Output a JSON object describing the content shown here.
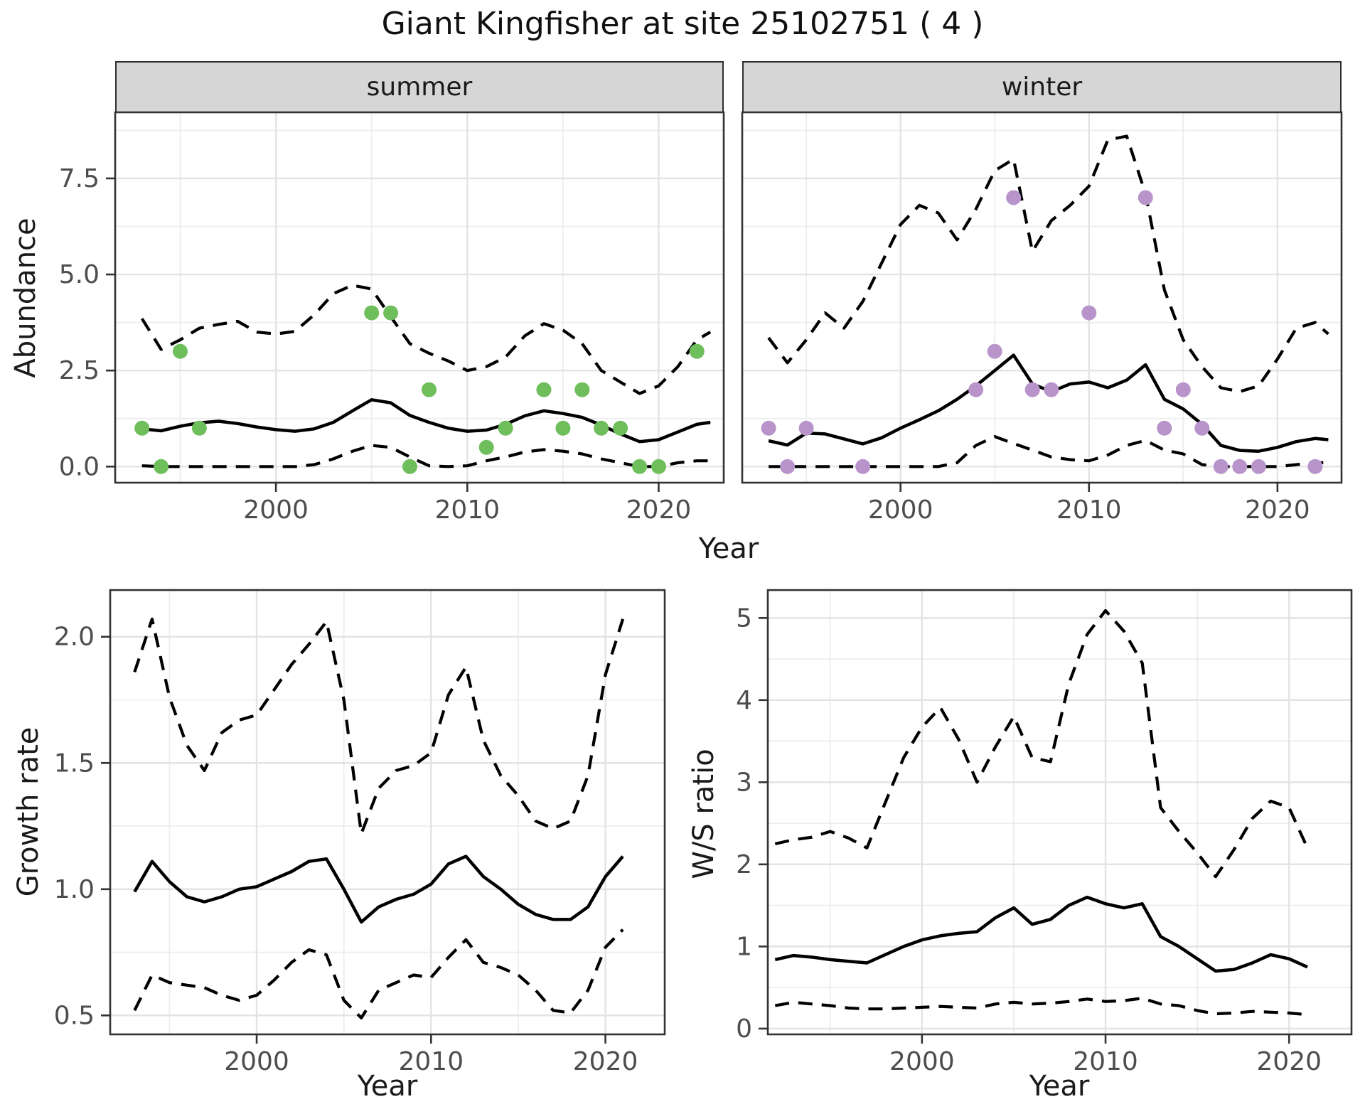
{
  "title": "Giant Kingfisher at site 25102751 ( 4 )",
  "colors": {
    "summer_points": "#6FBE5C",
    "winter_points": "#B894CB",
    "line": "#000000",
    "grid_major": "#e3e3e3",
    "grid_minor": "#ededed",
    "strip_fill": "#d6d6d6",
    "panel_border": "#333333",
    "tick_label": "#4d4d4d"
  },
  "chart_data": [
    {
      "id": "summer",
      "type": "line",
      "facet_label": "summer",
      "ylabel": "Abundance",
      "xlabel": "Year",
      "xlim": [
        1991.6,
        2023.4
      ],
      "ylim": [
        -0.42,
        9.22
      ],
      "xticks": [
        2000,
        2010,
        2020
      ],
      "xtick_labels": [
        "2000",
        "2010",
        "2020"
      ],
      "minor_x": [
        1995,
        2005,
        2015
      ],
      "yticks": [
        0,
        2.5,
        5,
        7.5
      ],
      "ytick_labels": [
        "0.0",
        "2.5",
        "5.0",
        "7.5"
      ],
      "minor_y": [
        1.25,
        3.75,
        6.25,
        8.75
      ],
      "series": [
        {
          "name": "fit",
          "style": "solid",
          "x": [
            1993,
            1994,
            1995,
            1996,
            1997,
            1998,
            1999,
            2000,
            2001,
            2002,
            2003,
            2004,
            2005,
            2006,
            2007,
            2008,
            2009,
            2010,
            2011,
            2012,
            2013,
            2014,
            2015,
            2016,
            2017,
            2018,
            2019,
            2020,
            2021,
            2022,
            2022.7
          ],
          "y": [
            0.98,
            0.93,
            1.05,
            1.14,
            1.18,
            1.12,
            1.03,
            0.96,
            0.92,
            0.98,
            1.15,
            1.45,
            1.74,
            1.66,
            1.33,
            1.15,
            1.0,
            0.92,
            0.95,
            1.1,
            1.32,
            1.45,
            1.38,
            1.28,
            1.08,
            0.85,
            0.65,
            0.7,
            0.9,
            1.1,
            1.15
          ]
        },
        {
          "name": "upper CI",
          "style": "dashed",
          "x": [
            1993,
            1994,
            1995,
            1996,
            1997,
            1998,
            1999,
            2000,
            2001,
            2002,
            2003,
            2004,
            2005,
            2006,
            2007,
            2008,
            2009,
            2010,
            2011,
            2012,
            2013,
            2014,
            2015,
            2016,
            2017,
            2018,
            2019,
            2020,
            2021,
            2022,
            2022.7
          ],
          "y": [
            3.85,
            3.05,
            3.3,
            3.6,
            3.7,
            3.78,
            3.5,
            3.45,
            3.52,
            3.95,
            4.5,
            4.72,
            4.62,
            3.9,
            3.2,
            2.95,
            2.75,
            2.5,
            2.6,
            2.85,
            3.4,
            3.72,
            3.55,
            3.2,
            2.5,
            2.2,
            1.9,
            2.1,
            2.6,
            3.3,
            3.5
          ]
        },
        {
          "name": "lower CI",
          "style": "dashed",
          "x": [
            1993,
            1994,
            1995,
            1996,
            1997,
            1998,
            1999,
            2000,
            2001,
            2002,
            2003,
            2004,
            2005,
            2006,
            2007,
            2008,
            2009,
            2010,
            2011,
            2012,
            2013,
            2014,
            2015,
            2016,
            2017,
            2018,
            2019,
            2020,
            2021,
            2022,
            2022.7
          ],
          "y": [
            0.02,
            0,
            0,
            0,
            0,
            0,
            0,
            0,
            0,
            0.05,
            0.2,
            0.4,
            0.55,
            0.5,
            0.25,
            0.02,
            0,
            0.02,
            0.15,
            0.25,
            0.38,
            0.44,
            0.4,
            0.33,
            0.2,
            0.1,
            0,
            0,
            0.1,
            0.15,
            0.15
          ]
        }
      ],
      "points": {
        "name": "observed counts",
        "color": "#6FBE5C",
        "x": [
          1993,
          1994,
          1995,
          1996,
          2005,
          2006,
          2007,
          2008,
          2011,
          2012,
          2014,
          2015,
          2016,
          2017,
          2018,
          2019,
          2020,
          2022
        ],
        "y": [
          1,
          0,
          3,
          1,
          4,
          4,
          0,
          2,
          0.5,
          1,
          2,
          1,
          2,
          1,
          1,
          0,
          0,
          3
        ]
      }
    },
    {
      "id": "winter",
      "type": "line",
      "facet_label": "winter",
      "ylabel": null,
      "xlabel": "Year",
      "xlim": [
        1991.6,
        2023.4
      ],
      "ylim": [
        -0.42,
        9.22
      ],
      "xticks": [
        2000,
        2010,
        2020
      ],
      "xtick_labels": [
        "2000",
        "2010",
        "2020"
      ],
      "minor_x": [
        1995,
        2005,
        2015
      ],
      "yticks": [
        0,
        2.5,
        5,
        7.5
      ],
      "ytick_labels": [],
      "minor_y": [
        1.25,
        3.75,
        6.25,
        8.75
      ],
      "series": [
        {
          "name": "fit",
          "style": "solid",
          "x": [
            1993,
            1994,
            1995,
            1996,
            1997,
            1998,
            1999,
            2000,
            2001,
            2002,
            2003,
            2004,
            2005,
            2006,
            2007,
            2008,
            2009,
            2010,
            2011,
            2012,
            2013,
            2014,
            2015,
            2016,
            2017,
            2018,
            2019,
            2020,
            2021,
            2022,
            2022.7
          ],
          "y": [
            0.67,
            0.56,
            0.87,
            0.85,
            0.72,
            0.59,
            0.75,
            1.0,
            1.22,
            1.45,
            1.75,
            2.1,
            2.5,
            2.9,
            2.15,
            1.95,
            2.15,
            2.2,
            2.05,
            2.25,
            2.65,
            1.75,
            1.5,
            1.1,
            0.55,
            0.42,
            0.4,
            0.5,
            0.65,
            0.73,
            0.7
          ]
        },
        {
          "name": "upper CI",
          "style": "dashed",
          "x": [
            1993,
            1994,
            1995,
            1996,
            1997,
            1998,
            1999,
            2000,
            2001,
            2002,
            2003,
            2004,
            2005,
            2006,
            2007,
            2008,
            2009,
            2010,
            2011,
            2012,
            2013,
            2014,
            2015,
            2016,
            2017,
            2018,
            2019,
            2020,
            2021,
            2022,
            2022.7
          ],
          "y": [
            3.35,
            2.7,
            3.3,
            4.0,
            3.6,
            4.3,
            5.3,
            6.3,
            6.8,
            6.6,
            5.9,
            6.7,
            7.7,
            8.0,
            5.6,
            6.4,
            6.8,
            7.3,
            8.5,
            8.6,
            7.1,
            4.6,
            3.3,
            2.6,
            2.05,
            1.95,
            2.1,
            2.8,
            3.6,
            3.75,
            3.45
          ]
        },
        {
          "name": "lower CI",
          "style": "dashed",
          "x": [
            1993,
            1994,
            1995,
            1996,
            1997,
            1998,
            1999,
            2000,
            2001,
            2002,
            2003,
            2004,
            2005,
            2006,
            2007,
            2008,
            2009,
            2010,
            2011,
            2012,
            2013,
            2014,
            2015,
            2016,
            2017,
            2018,
            2019,
            2020,
            2021,
            2022,
            2022.7
          ],
          "y": [
            0,
            0,
            0,
            0,
            0,
            0,
            0,
            0,
            0,
            0,
            0.1,
            0.55,
            0.78,
            0.6,
            0.43,
            0.25,
            0.18,
            0.15,
            0.3,
            0.55,
            0.68,
            0.43,
            0.33,
            0.05,
            0,
            0,
            0,
            0,
            0.05,
            0.1,
            0.1
          ]
        }
      ],
      "points": {
        "name": "observed counts",
        "color": "#B894CB",
        "x": [
          1993,
          1994,
          1995,
          1998,
          2004,
          2005,
          2006,
          2007,
          2008,
          2010,
          2013,
          2014,
          2015,
          2016,
          2017,
          2018,
          2019,
          2022
        ],
        "y": [
          1,
          0,
          1,
          0,
          2,
          3,
          7,
          2,
          2,
          4,
          7,
          1,
          2,
          1,
          0,
          0,
          0,
          0
        ]
      }
    },
    {
      "id": "growth",
      "type": "line",
      "facet_label": null,
      "ylabel": "Growth rate",
      "xlabel": "Year",
      "xlim": [
        1991.6,
        2023.4
      ],
      "ylim": [
        0.425,
        2.185
      ],
      "xticks": [
        2000,
        2010,
        2020
      ],
      "xtick_labels": [
        "2000",
        "2010",
        "2020"
      ],
      "minor_x": [
        1995,
        2005,
        2015
      ],
      "yticks": [
        0.5,
        1.0,
        1.5,
        2.0
      ],
      "ytick_labels": [
        "0.5",
        "1.0",
        "1.5",
        "2.0"
      ],
      "minor_y": [
        0.75,
        1.25,
        1.75
      ],
      "series": [
        {
          "name": "fit",
          "style": "solid",
          "x": [
            1993,
            1994,
            1995,
            1996,
            1997,
            1998,
            1999,
            2000,
            2001,
            2002,
            2003,
            2004,
            2005,
            2006,
            2007,
            2008,
            2009,
            2010,
            2011,
            2012,
            2013,
            2014,
            2015,
            2016,
            2017,
            2018,
            2019,
            2020,
            2021
          ],
          "y": [
            0.99,
            1.11,
            1.03,
            0.97,
            0.95,
            0.97,
            1.0,
            1.01,
            1.04,
            1.07,
            1.11,
            1.12,
            1.0,
            0.87,
            0.93,
            0.96,
            0.98,
            1.02,
            1.1,
            1.13,
            1.05,
            1.0,
            0.94,
            0.9,
            0.88,
            0.88,
            0.93,
            1.05,
            1.13
          ]
        },
        {
          "name": "upper CI",
          "style": "dashed",
          "x": [
            1993,
            1994,
            1995,
            1996,
            1997,
            1998,
            1999,
            2000,
            2001,
            2002,
            2003,
            2004,
            2005,
            2006,
            2007,
            2008,
            2009,
            2010,
            2011,
            2012,
            2013,
            2014,
            2015,
            2016,
            2017,
            2018,
            2019,
            2020,
            2021
          ],
          "y": [
            1.86,
            2.07,
            1.76,
            1.57,
            1.47,
            1.62,
            1.67,
            1.69,
            1.79,
            1.89,
            1.97,
            2.06,
            1.75,
            1.22,
            1.4,
            1.47,
            1.49,
            1.54,
            1.77,
            1.88,
            1.59,
            1.45,
            1.37,
            1.27,
            1.24,
            1.27,
            1.45,
            1.85,
            2.07
          ]
        },
        {
          "name": "lower CI",
          "style": "dashed",
          "x": [
            1993,
            1994,
            1995,
            1996,
            1997,
            1998,
            1999,
            2000,
            2001,
            2002,
            2003,
            2004,
            2005,
            2006,
            2007,
            2008,
            2009,
            2010,
            2011,
            2012,
            2013,
            2014,
            2015,
            2016,
            2017,
            2018,
            2019,
            2020,
            2021
          ],
          "y": [
            0.52,
            0.66,
            0.63,
            0.62,
            0.61,
            0.58,
            0.56,
            0.58,
            0.64,
            0.71,
            0.76,
            0.74,
            0.56,
            0.49,
            0.6,
            0.63,
            0.66,
            0.65,
            0.73,
            0.8,
            0.71,
            0.69,
            0.66,
            0.6,
            0.52,
            0.51,
            0.6,
            0.77,
            0.84
          ]
        }
      ],
      "points": null
    },
    {
      "id": "ws",
      "type": "line",
      "facet_label": null,
      "ylabel": "W/S ratio",
      "xlabel": "Year",
      "xlim": [
        1991.6,
        2023.4
      ],
      "ylim": [
        -0.07,
        5.34
      ],
      "xticks": [
        2000,
        2010,
        2020
      ],
      "xtick_labels": [
        "2000",
        "2010",
        "2020"
      ],
      "minor_x": [
        1995,
        2005,
        2015
      ],
      "yticks": [
        0,
        1,
        2,
        3,
        4,
        5
      ],
      "ytick_labels": [
        "0",
        "1",
        "2",
        "3",
        "4",
        "5"
      ],
      "minor_y": [
        0.5,
        1.5,
        2.5,
        3.5,
        4.5
      ],
      "series": [
        {
          "name": "fit",
          "style": "solid",
          "x": [
            1992,
            1993,
            1994,
            1995,
            1996,
            1997,
            1998,
            1999,
            2000,
            2001,
            2002,
            2003,
            2004,
            2005,
            2006,
            2007,
            2008,
            2009,
            2010,
            2011,
            2012,
            2013,
            2014,
            2015,
            2016,
            2017,
            2018,
            2019,
            2020,
            2021
          ],
          "y": [
            0.84,
            0.89,
            0.87,
            0.84,
            0.82,
            0.8,
            0.9,
            1.0,
            1.08,
            1.13,
            1.16,
            1.18,
            1.35,
            1.47,
            1.27,
            1.33,
            1.5,
            1.6,
            1.52,
            1.47,
            1.52,
            1.12,
            1.0,
            0.85,
            0.7,
            0.72,
            0.8,
            0.9,
            0.85,
            0.75
          ]
        },
        {
          "name": "upper CI",
          "style": "dashed",
          "x": [
            1992,
            1993,
            1994,
            1995,
            1996,
            1997,
            1998,
            1999,
            2000,
            2001,
            2002,
            2003,
            2004,
            2005,
            2006,
            2007,
            2008,
            2009,
            2010,
            2011,
            2012,
            2013,
            2014,
            2015,
            2016,
            2017,
            2018,
            2019,
            2020,
            2021
          ],
          "y": [
            2.25,
            2.3,
            2.33,
            2.4,
            2.32,
            2.2,
            2.75,
            3.3,
            3.67,
            3.91,
            3.52,
            3.0,
            3.43,
            3.8,
            3.3,
            3.25,
            4.2,
            4.8,
            5.09,
            4.84,
            4.45,
            2.69,
            2.4,
            2.14,
            1.85,
            2.18,
            2.56,
            2.77,
            2.69,
            2.2
          ]
        },
        {
          "name": "lower CI",
          "style": "dashed",
          "x": [
            1992,
            1993,
            1994,
            1995,
            1996,
            1997,
            1998,
            1999,
            2000,
            2001,
            2002,
            2003,
            2004,
            2005,
            2006,
            2007,
            2008,
            2009,
            2010,
            2011,
            2012,
            2013,
            2014,
            2015,
            2016,
            2017,
            2018,
            2019,
            2020,
            2021
          ],
          "y": [
            0.28,
            0.32,
            0.3,
            0.28,
            0.25,
            0.24,
            0.24,
            0.25,
            0.26,
            0.27,
            0.26,
            0.25,
            0.3,
            0.32,
            0.3,
            0.31,
            0.33,
            0.36,
            0.33,
            0.34,
            0.37,
            0.3,
            0.28,
            0.22,
            0.18,
            0.19,
            0.21,
            0.2,
            0.19,
            0.17
          ]
        }
      ],
      "points": null
    }
  ]
}
